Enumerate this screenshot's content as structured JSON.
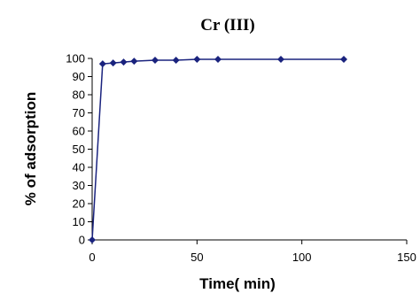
{
  "chart_data": {
    "type": "line",
    "title": "Cr (III)",
    "xlabel": "Time( min)",
    "ylabel": "% of adsorption",
    "xlim": [
      0,
      150
    ],
    "ylim": [
      0,
      100
    ],
    "xticks": [
      "0",
      "50",
      "100",
      "150"
    ],
    "yticks": [
      "0",
      "10",
      "20",
      "30",
      "40",
      "50",
      "60",
      "70",
      "80",
      "90",
      "100"
    ],
    "grid": false,
    "legend": "none",
    "series": [
      {
        "x": [
          0,
          5,
          10,
          15,
          20,
          30,
          40,
          50,
          60,
          90,
          120
        ],
        "y": [
          0,
          97,
          97.5,
          98,
          98.5,
          99,
          99,
          99.5,
          99.5,
          99.5,
          99.5
        ],
        "color": "#1a237e",
        "marker": "diamond"
      }
    ]
  }
}
